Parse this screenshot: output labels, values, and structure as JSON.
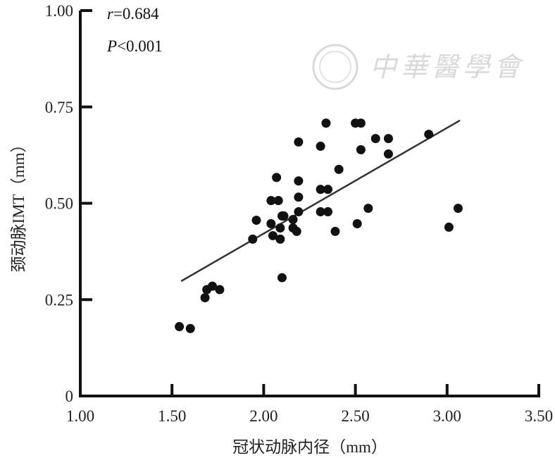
{
  "chart_data": {
    "type": "scatter",
    "title": "",
    "xlabel": "冠状动脉内径（mm）",
    "ylabel": "颈动脉IMT（mm）",
    "xlim": [
      1.0,
      3.5
    ],
    "ylim": [
      0,
      1.0
    ],
    "x_ticks": [
      1.0,
      1.5,
      2.0,
      2.5,
      3.0,
      3.5
    ],
    "x_tick_labels": [
      "1.00",
      "1.50",
      "2.00",
      "2.50",
      "3.00",
      "3.50"
    ],
    "y_ticks": [
      0,
      0.25,
      0.5,
      0.75,
      1.0
    ],
    "y_tick_labels": [
      "0",
      "0.25",
      "0.50",
      "0.75",
      "1.00"
    ],
    "grid": false,
    "annotations": {
      "r_symbol": "r",
      "r_value": "=0.684",
      "p_symbol": "P",
      "p_value": "<0.001"
    },
    "points": [
      [
        1.54,
        0.18
      ],
      [
        1.6,
        0.175
      ],
      [
        1.68,
        0.255
      ],
      [
        1.69,
        0.276
      ],
      [
        1.72,
        0.285
      ],
      [
        1.76,
        0.276
      ],
      [
        1.94,
        0.407
      ],
      [
        1.96,
        0.456
      ],
      [
        2.04,
        0.507
      ],
      [
        2.08,
        0.507
      ],
      [
        2.07,
        0.567
      ],
      [
        2.04,
        0.447
      ],
      [
        2.05,
        0.416
      ],
      [
        2.09,
        0.436
      ],
      [
        2.09,
        0.407
      ],
      [
        2.1,
        0.467
      ],
      [
        2.1,
        0.307
      ],
      [
        2.11,
        0.467
      ],
      [
        2.16,
        0.458
      ],
      [
        2.16,
        0.436
      ],
      [
        2.18,
        0.427
      ],
      [
        2.19,
        0.558
      ],
      [
        2.19,
        0.516
      ],
      [
        2.19,
        0.478
      ],
      [
        2.19,
        0.659
      ],
      [
        2.31,
        0.648
      ],
      [
        2.34,
        0.708
      ],
      [
        2.31,
        0.536
      ],
      [
        2.35,
        0.536
      ],
      [
        2.31,
        0.478
      ],
      [
        2.35,
        0.478
      ],
      [
        2.39,
        0.427
      ],
      [
        2.41,
        0.588
      ],
      [
        2.5,
        0.708
      ],
      [
        2.53,
        0.708
      ],
      [
        2.53,
        0.639
      ],
      [
        2.51,
        0.447
      ],
      [
        2.57,
        0.487
      ],
      [
        2.61,
        0.668
      ],
      [
        2.68,
        0.668
      ],
      [
        2.68,
        0.628
      ],
      [
        2.9,
        0.679
      ],
      [
        3.01,
        0.438
      ],
      [
        3.06,
        0.487
      ]
    ],
    "regression_line": {
      "x": [
        1.55,
        3.07
      ],
      "y": [
        0.298,
        0.715
      ]
    }
  },
  "watermark": {
    "logo_text": "中華醫學會"
  },
  "colors": {
    "points": "#111111",
    "line": "#333333",
    "axis": "#111111",
    "watermark": "#c9c9c9"
  }
}
